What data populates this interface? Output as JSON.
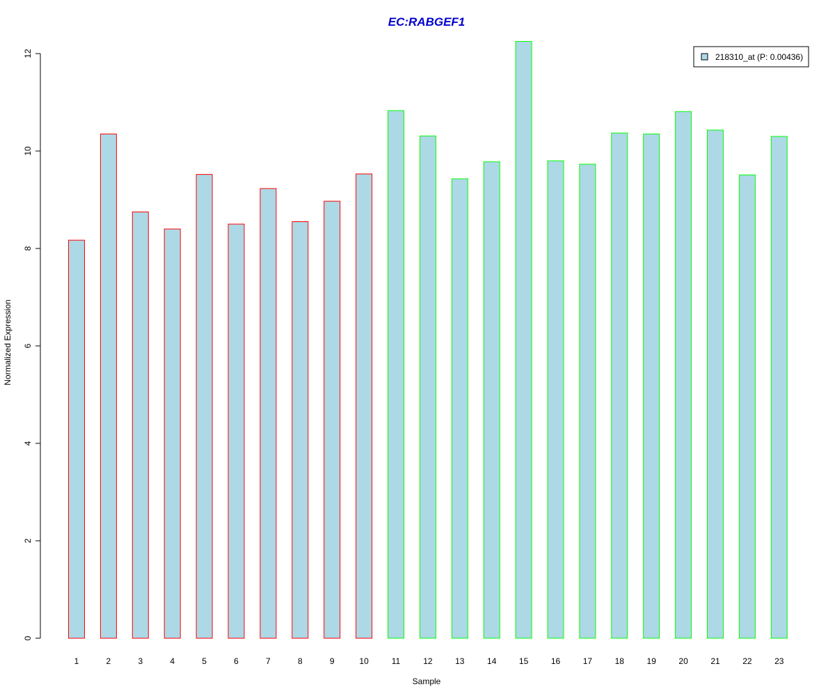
{
  "chart_data": {
    "type": "bar",
    "title": "EC:RABGEF1",
    "xlabel": "Sample",
    "ylabel": "Normalized Expression",
    "categories": [
      "1",
      "2",
      "3",
      "4",
      "5",
      "6",
      "7",
      "8",
      "9",
      "10",
      "11",
      "12",
      "13",
      "14",
      "15",
      "16",
      "17",
      "18",
      "19",
      "20",
      "21",
      "22",
      "23"
    ],
    "series": [
      {
        "name": "218310_at (P: 0.00436)",
        "values": [
          8.17,
          10.35,
          8.75,
          8.4,
          9.52,
          8.5,
          9.23,
          8.55,
          8.97,
          9.53,
          10.83,
          10.31,
          9.43,
          9.78,
          12.25,
          9.8,
          9.73,
          10.37,
          10.35,
          10.81,
          10.43,
          9.51,
          10.3
        ],
        "fill_color": "#add8e6"
      }
    ],
    "bar_border_colors": [
      "#ff0000",
      "#ff0000",
      "#ff0000",
      "#ff0000",
      "#ff0000",
      "#ff0000",
      "#ff0000",
      "#ff0000",
      "#ff0000",
      "#ff0000",
      "#00ff00",
      "#00ff00",
      "#00ff00",
      "#00ff00",
      "#00ff00",
      "#00ff00",
      "#00ff00",
      "#00ff00",
      "#00ff00",
      "#00ff00",
      "#00ff00",
      "#00ff00",
      "#00ff00"
    ],
    "yticks": [
      0,
      2,
      4,
      6,
      8,
      10,
      12
    ],
    "ylim": [
      0,
      12.25
    ],
    "grid": false,
    "legend_position": "top-right",
    "title_color": "#0000cc"
  }
}
